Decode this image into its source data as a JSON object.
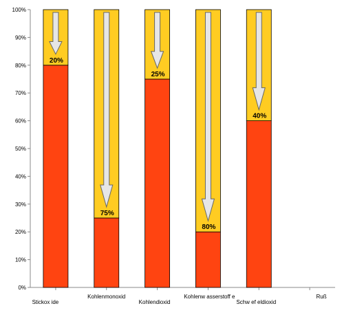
{
  "chart_data": {
    "type": "bar",
    "stacked": true,
    "categories": [
      "Stickoxide",
      "Kohlenmonoxid",
      "Kohlendioxid",
      "Kohlenwasserstoffe",
      "Schwefeldioxid",
      "Ruß"
    ],
    "category_labels": [
      "Stickox ide",
      "Kohlenmonoxid",
      "Kohlendioxid",
      "Kohlenw asserstoff e",
      "Schw ef eldioxid",
      "Ruß"
    ],
    "series": [
      {
        "values": [
          80,
          25,
          75,
          20,
          60,
          null
        ],
        "color": "#ff4411"
      },
      {
        "values": [
          20,
          75,
          25,
          80,
          40,
          null
        ],
        "color": "#ffcc22"
      }
    ],
    "reduction_labels": [
      "20%",
      "75%",
      "25%",
      "80%",
      "40%",
      ""
    ],
    "y_ticks": [
      "0%",
      "10%",
      "20%",
      "30%",
      "40%",
      "50%",
      "60%",
      "70%",
      "80%",
      "90%",
      "100%"
    ],
    "ylim": [
      0,
      100
    ],
    "xlabel": "",
    "ylabel": "",
    "grid": false,
    "legend": "none",
    "annotations": "downward arrows showing reduction within each bar",
    "colors": {
      "lower": "#ff4411",
      "upper": "#ffcc22",
      "arrow_fill": "#e6e6e6",
      "arrow_stroke": "#666666",
      "axis": "#888888",
      "bar_outline": "#000000"
    }
  }
}
